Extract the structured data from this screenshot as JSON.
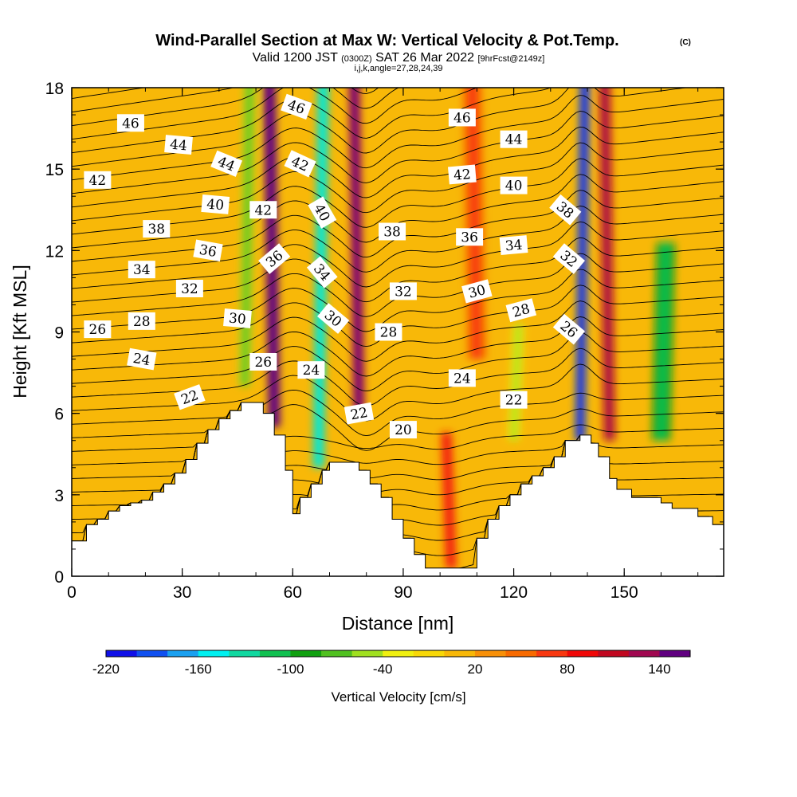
{
  "header": {
    "title": "Wind-Parallel Section at Max W: Vertical Velocity & Pot.Temp.",
    "copyright": "(C)",
    "valid_prefix": "Valid 1200 JST ",
    "valid_utc": "(0300Z)",
    "valid_suffix": " SAT 26 Mar 2022 ",
    "forecast": "[9hrFcst@2149z]",
    "indices": "i,j,k,angle=27,28,24,39"
  },
  "colorbar": {
    "title": "Vertical Velocity [cm/s]",
    "colors": [
      "#1010e8",
      "#1050f0",
      "#1aa0f0",
      "#00f0f0",
      "#10d8a0",
      "#10c050",
      "#10a010",
      "#50c020",
      "#a0e020",
      "#f0f010",
      "#f8d808",
      "#f8b808",
      "#f89008",
      "#f86a00",
      "#f83810",
      "#f00808",
      "#c00820",
      "#a00850",
      "#600080"
    ],
    "labels": [
      "-220",
      "-160",
      "-100",
      "-40",
      "20",
      "80",
      "140"
    ]
  },
  "chart_data": {
    "type": "heatmap",
    "description_units": "Vertical velocity shading with potential-temperature contours",
    "xlabel": "Distance [nm]",
    "ylabel": "Height [Kft MSL]",
    "xlim": [
      0,
      177
    ],
    "ylim": [
      0,
      18
    ],
    "x_ticks": [
      "0",
      "30",
      "60",
      "90",
      "120",
      "150"
    ],
    "y_ticks": [
      "0",
      "3",
      "6",
      "9",
      "12",
      "15",
      "18"
    ],
    "color_scale": {
      "min": -220,
      "max": 160,
      "step": 20
    },
    "terrain_profile": [
      [
        0,
        1.3
      ],
      [
        4,
        1.3
      ],
      [
        4,
        1.9
      ],
      [
        7,
        1.9
      ],
      [
        7,
        2.1
      ],
      [
        10,
        2.1
      ],
      [
        10,
        2.4
      ],
      [
        13,
        2.4
      ],
      [
        13,
        2.6
      ],
      [
        16,
        2.6
      ],
      [
        16,
        2.7
      ],
      [
        19,
        2.7
      ],
      [
        19,
        2.8
      ],
      [
        22,
        2.8
      ],
      [
        22,
        3.1
      ],
      [
        25,
        3.1
      ],
      [
        25,
        3.4
      ],
      [
        28,
        3.4
      ],
      [
        28,
        3.8
      ],
      [
        31,
        3.8
      ],
      [
        31,
        4.3
      ],
      [
        34,
        4.3
      ],
      [
        34,
        4.9
      ],
      [
        37,
        4.9
      ],
      [
        37,
        5.4
      ],
      [
        40,
        5.4
      ],
      [
        40,
        5.8
      ],
      [
        43,
        5.8
      ],
      [
        43,
        6.1
      ],
      [
        46,
        6.1
      ],
      [
        46,
        6.4
      ],
      [
        52,
        6.4
      ],
      [
        52,
        6.0
      ],
      [
        55,
        6.0
      ],
      [
        55,
        5.2
      ],
      [
        58,
        5.2
      ],
      [
        58,
        3.9
      ],
      [
        60,
        3.9
      ],
      [
        60,
        2.3
      ],
      [
        62,
        2.3
      ],
      [
        62,
        2.9
      ],
      [
        65,
        2.9
      ],
      [
        65,
        3.4
      ],
      [
        68,
        3.4
      ],
      [
        68,
        3.9
      ],
      [
        70,
        3.9
      ],
      [
        70,
        4.2
      ],
      [
        78,
        4.2
      ],
      [
        78,
        3.9
      ],
      [
        81,
        3.9
      ],
      [
        81,
        3.4
      ],
      [
        84,
        3.4
      ],
      [
        84,
        2.9
      ],
      [
        87,
        2.9
      ],
      [
        87,
        2.1
      ],
      [
        90,
        2.1
      ],
      [
        90,
        1.4
      ],
      [
        93,
        1.4
      ],
      [
        93,
        0.8
      ],
      [
        96,
        0.8
      ],
      [
        96,
        0.3
      ],
      [
        110,
        0.3
      ],
      [
        110,
        1.4
      ],
      [
        113,
        1.4
      ],
      [
        113,
        2.1
      ],
      [
        116,
        2.1
      ],
      [
        116,
        2.6
      ],
      [
        119,
        2.6
      ],
      [
        119,
        3.0
      ],
      [
        122,
        3.0
      ],
      [
        122,
        3.4
      ],
      [
        125,
        3.4
      ],
      [
        125,
        3.7
      ],
      [
        128,
        3.7
      ],
      [
        128,
        4.0
      ],
      [
        131,
        4.0
      ],
      [
        131,
        4.4
      ],
      [
        134,
        4.4
      ],
      [
        134,
        5.0
      ],
      [
        138,
        5.0
      ],
      [
        138,
        5.2
      ],
      [
        141,
        5.2
      ],
      [
        141,
        4.9
      ],
      [
        143,
        4.9
      ],
      [
        143,
        4.4
      ],
      [
        146,
        4.4
      ],
      [
        146,
        3.6
      ],
      [
        148,
        3.6
      ],
      [
        148,
        3.2
      ],
      [
        152,
        3.2
      ],
      [
        152,
        2.9
      ],
      [
        160,
        2.9
      ],
      [
        160,
        2.7
      ],
      [
        163,
        2.7
      ],
      [
        163,
        2.5
      ],
      [
        170,
        2.5
      ],
      [
        170,
        2.2
      ],
      [
        174,
        2.2
      ],
      [
        174,
        1.9
      ],
      [
        177,
        1.9
      ]
    ],
    "vertical_velocity_features": [
      {
        "x": 55,
        "width": 3.2,
        "ybot": 5.5,
        "ytop": 18,
        "value": 150
      },
      {
        "x": 47,
        "width": 3.0,
        "ybot": 7,
        "ytop": 18,
        "value": -60
      },
      {
        "x": 67,
        "width": 3.0,
        "ybot": 4,
        "ytop": 18,
        "value": -140
      },
      {
        "x": 78,
        "width": 3.0,
        "ybot": 6,
        "ytop": 18,
        "value": 130
      },
      {
        "x": 138,
        "width": 2.6,
        "ybot": 5,
        "ytop": 18,
        "value": -200
      },
      {
        "x": 146,
        "width": 3.0,
        "ybot": 5,
        "ytop": 18,
        "value": 110
      },
      {
        "x": 160,
        "width": 5.0,
        "ybot": 5,
        "ytop": 12,
        "value": -90
      },
      {
        "x": 120,
        "width": 3.0,
        "ybot": 5,
        "ytop": 9,
        "value": -40
      },
      {
        "x": 103,
        "width": 3.0,
        "ybot": 0.3,
        "ytop": 5,
        "value": 60
      },
      {
        "x": 110,
        "width": 5.0,
        "ybot": 8,
        "ytop": 18,
        "value": 40
      }
    ],
    "theta_contour_labels": [
      {
        "text": "46",
        "x": 16,
        "y": 16.7,
        "r": 0
      },
      {
        "text": "44",
        "x": 29,
        "y": 15.9,
        "r": 5
      },
      {
        "text": "44",
        "x": 42,
        "y": 15.2,
        "r": 22
      },
      {
        "text": "42",
        "x": 7,
        "y": 14.6,
        "r": 0
      },
      {
        "text": "40",
        "x": 39,
        "y": 13.7,
        "r": 5
      },
      {
        "text": "38",
        "x": 23,
        "y": 12.8,
        "r": 0
      },
      {
        "text": "36",
        "x": 37,
        "y": 12.0,
        "r": 10
      },
      {
        "text": "34",
        "x": 19,
        "y": 11.3,
        "r": 0
      },
      {
        "text": "32",
        "x": 32,
        "y": 10.6,
        "r": 0
      },
      {
        "text": "30",
        "x": 45,
        "y": 9.5,
        "r": 5
      },
      {
        "text": "28",
        "x": 19,
        "y": 9.4,
        "r": 0
      },
      {
        "text": "26",
        "x": 7,
        "y": 9.1,
        "r": 0
      },
      {
        "text": "24",
        "x": 19,
        "y": 8.0,
        "r": 10
      },
      {
        "text": "26",
        "x": 52,
        "y": 7.9,
        "r": 0
      },
      {
        "text": "24",
        "x": 65,
        "y": 7.6,
        "r": 0
      },
      {
        "text": "22",
        "x": 32,
        "y": 6.6,
        "r": -20
      },
      {
        "text": "46",
        "x": 61,
        "y": 17.3,
        "r": 20
      },
      {
        "text": "42",
        "x": 62,
        "y": 15.2,
        "r": 25
      },
      {
        "text": "42",
        "x": 52,
        "y": 13.5,
        "r": 0
      },
      {
        "text": "40",
        "x": 68,
        "y": 13.4,
        "r": 60
      },
      {
        "text": "36",
        "x": 55,
        "y": 11.7,
        "r": -40
      },
      {
        "text": "34",
        "x": 68,
        "y": 11.2,
        "r": 50
      },
      {
        "text": "30",
        "x": 71,
        "y": 9.5,
        "r": 40
      },
      {
        "text": "28",
        "x": 86,
        "y": 9.0,
        "r": 0
      },
      {
        "text": "22",
        "x": 78,
        "y": 6.0,
        "r": -10
      },
      {
        "text": "20",
        "x": 90,
        "y": 5.4,
        "r": 0
      },
      {
        "text": "38",
        "x": 87,
        "y": 12.7,
        "r": 0
      },
      {
        "text": "32",
        "x": 90,
        "y": 10.5,
        "r": 0
      },
      {
        "text": "46",
        "x": 106,
        "y": 16.9,
        "r": 0
      },
      {
        "text": "44",
        "x": 120,
        "y": 16.1,
        "r": 0
      },
      {
        "text": "42",
        "x": 106,
        "y": 14.8,
        "r": -5
      },
      {
        "text": "40",
        "x": 120,
        "y": 14.4,
        "r": 0
      },
      {
        "text": "36",
        "x": 108,
        "y": 12.5,
        "r": 0
      },
      {
        "text": "34",
        "x": 120,
        "y": 12.2,
        "r": -5
      },
      {
        "text": "30",
        "x": 110,
        "y": 10.5,
        "r": -15
      },
      {
        "text": "28",
        "x": 122,
        "y": 9.8,
        "r": -15
      },
      {
        "text": "24",
        "x": 106,
        "y": 7.3,
        "r": 0
      },
      {
        "text": "22",
        "x": 120,
        "y": 6.5,
        "r": 0
      },
      {
        "text": "38",
        "x": 134,
        "y": 13.5,
        "r": 40
      },
      {
        "text": "32",
        "x": 135,
        "y": 11.7,
        "r": 40
      },
      {
        "text": "26",
        "x": 135,
        "y": 9.1,
        "r": 40
      }
    ]
  }
}
